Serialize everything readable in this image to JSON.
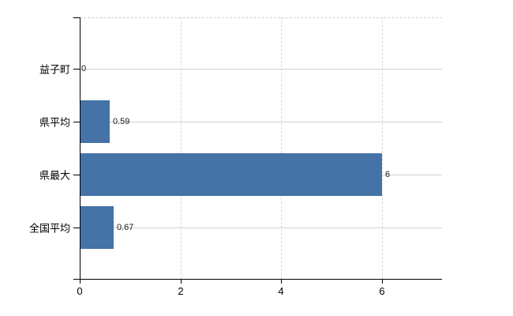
{
  "chart_data": {
    "type": "bar",
    "orientation": "horizontal",
    "title": "",
    "categories": [
      "益子町",
      "県平均",
      "県最大",
      "全国平均"
    ],
    "values": [
      0,
      0.59,
      6,
      0.67
    ],
    "value_labels": [
      "0",
      "0.59",
      "6",
      "0.67"
    ],
    "x_ticks": [
      "0",
      "2",
      "4",
      "6"
    ],
    "x_tick_values": [
      0,
      2,
      4,
      6
    ],
    "xlim": [
      0,
      7.2
    ],
    "grid": true,
    "legend_position": "none",
    "colors": {
      "bar": "#4572a7",
      "axis": "#000000",
      "h_gridline": "#ccd5cc",
      "v_gridline": "#d8d8d8",
      "top_border": "#cfcfcf",
      "category_text": "#000000",
      "value_text": "#1a1a1a",
      "background": "#ffffff"
    }
  }
}
